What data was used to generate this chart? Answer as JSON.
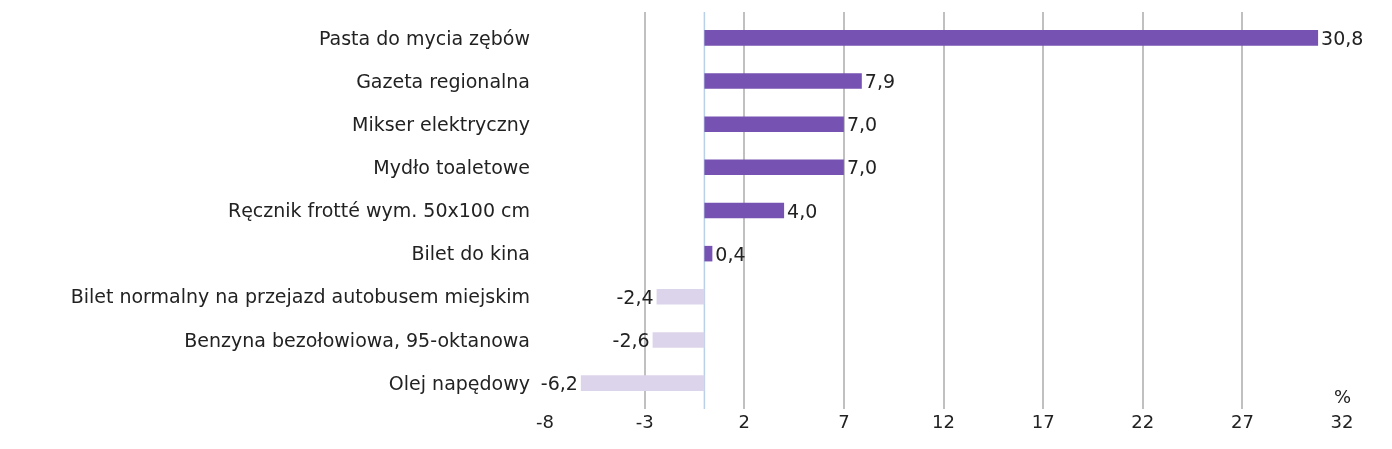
{
  "chart_data": {
    "type": "bar",
    "orientation": "horizontal",
    "xlabel": "%",
    "categories": [
      "Pasta do mycia zębów",
      "Gazeta regionalna",
      "Mikser elektryczny",
      "Mydło toaletowe",
      "Ręcznik frotté wym. 50x100 cm",
      "Bilet do kina",
      "Bilet normalny na przejazd autobusem miejskim",
      "Benzyna bezołowiowa, 95-oktanowa",
      "Olej napędowy"
    ],
    "values": [
      30.8,
      7.9,
      7.0,
      7.0,
      4.0,
      0.4,
      -2.4,
      -2.6,
      -6.2
    ],
    "value_labels": [
      "30,8",
      "7,9",
      "7,0",
      "7,0",
      "4,0",
      "0,4",
      "-2,4",
      "-2,6",
      "-6,2"
    ],
    "colors": [
      "#7652b2",
      "#7652b2",
      "#7652b2",
      "#7652b2",
      "#7652b2",
      "#7652b2",
      "#dcd4eb",
      "#dcd4eb",
      "#dcd4eb"
    ],
    "xlim": [
      -8,
      32
    ],
    "xticks": [
      -8,
      -3,
      2,
      7,
      12,
      17,
      22,
      27,
      32
    ],
    "grid": "x",
    "ref_lines": [
      {
        "axis": "x",
        "value": 0,
        "color": "#b8d0e8"
      }
    ]
  }
}
